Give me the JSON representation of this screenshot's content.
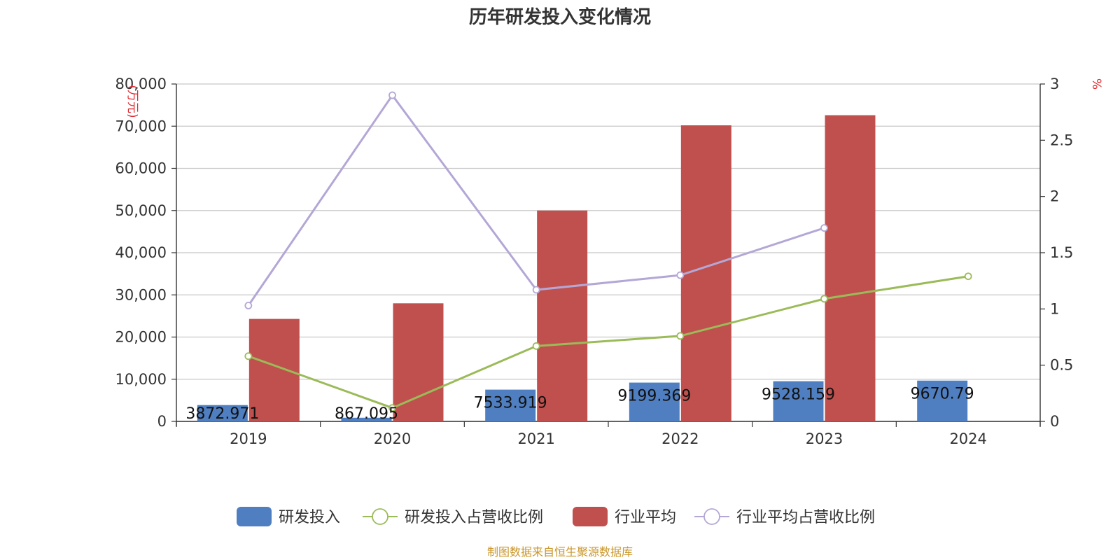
{
  "chart_data": {
    "type": "bar",
    "title": "历年研发投入变化情况",
    "categories": [
      "2019",
      "2020",
      "2021",
      "2022",
      "2023",
      "2024"
    ],
    "y_left": {
      "label": "(万元)",
      "ylim": [
        0,
        80000
      ],
      "ticks": [
        "0",
        "10,000",
        "20,000",
        "30,000",
        "40,000",
        "50,000",
        "60,000",
        "70,000",
        "80,000"
      ]
    },
    "y_right": {
      "label": "%",
      "ylim": [
        0,
        3
      ],
      "ticks": [
        "0",
        "0.5",
        "1",
        "1.5",
        "2",
        "2.5",
        "3"
      ]
    },
    "grid": true,
    "legend_position": "bottom",
    "series": [
      {
        "name": "研发投入",
        "kind": "bar",
        "axis": "left",
        "color": "#4f7fc1",
        "values": [
          3872.971,
          867.095,
          7533.919,
          9199.369,
          9528.159,
          9670.79
        ],
        "labels": [
          "3872.971",
          "867.095",
          "7533.919",
          "9199.369",
          "9528.159",
          "9670.79"
        ]
      },
      {
        "name": "研发投入占营收比例",
        "kind": "line",
        "axis": "right",
        "color": "#9bbb59",
        "values": [
          0.58,
          0.12,
          0.67,
          0.76,
          1.09,
          1.29
        ]
      },
      {
        "name": "行业平均",
        "kind": "bar",
        "axis": "left",
        "color": "#c0504d",
        "values": [
          24300,
          28000,
          50000,
          70200,
          72600,
          null
        ]
      },
      {
        "name": "行业平均占营收比例",
        "kind": "line",
        "axis": "right",
        "color": "#b4a7d6",
        "values": [
          1.03,
          2.9,
          1.17,
          1.3,
          1.72,
          null
        ]
      }
    ]
  },
  "source": "制图数据来自恒生聚源数据库"
}
